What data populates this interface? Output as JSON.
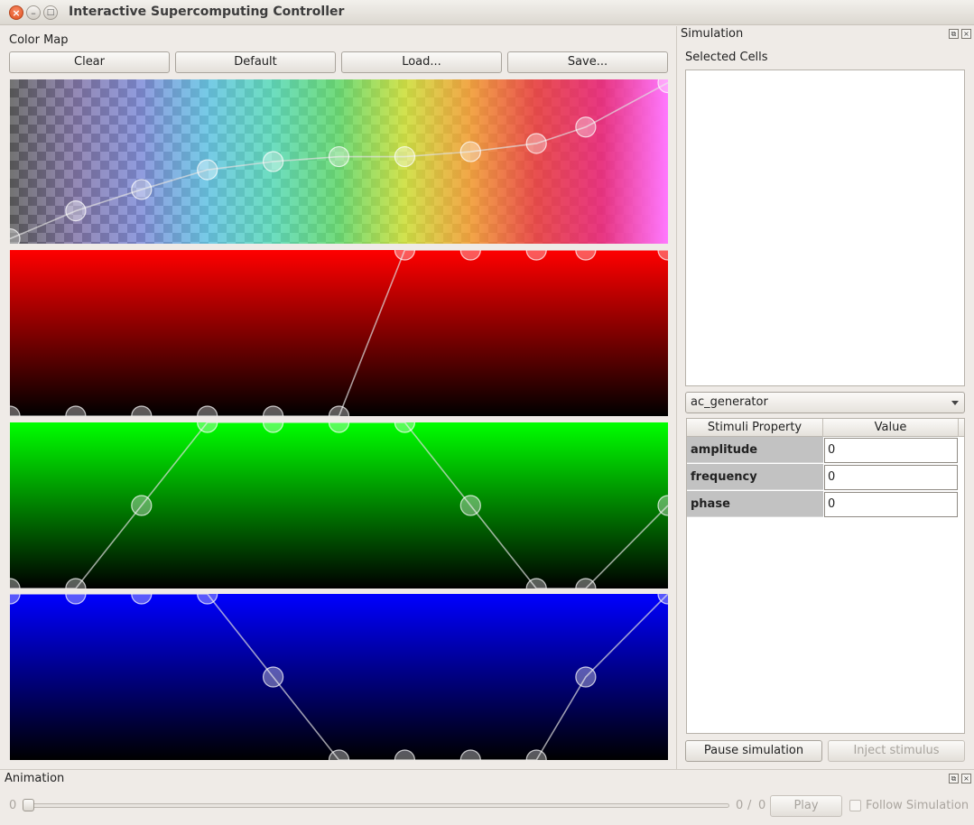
{
  "window": {
    "title": "Interactive Supercomputing Controller",
    "close_glyph": "×",
    "min_glyph": "–",
    "max_glyph": "□"
  },
  "color_map": {
    "label": "Color Map",
    "buttons": {
      "clear": "Clear",
      "default": "Default",
      "load": "Load...",
      "save": "Save..."
    }
  },
  "simulation": {
    "title": "Simulation",
    "float_glyph": "⧉",
    "close_glyph": "×",
    "selected_cells_label": "Selected Cells",
    "stimulus_type": "ac_generator",
    "table": {
      "headers": [
        "Stimuli Property",
        "Value"
      ],
      "rows": [
        {
          "property": "amplitude",
          "value": "0"
        },
        {
          "property": "frequency",
          "value": "0"
        },
        {
          "property": "phase",
          "value": "0"
        }
      ]
    },
    "pause_button": "Pause simulation",
    "inject_button": "Inject stimulus"
  },
  "animation": {
    "title": "Animation",
    "float_glyph": "⧉",
    "close_glyph": "×",
    "start_value": "0",
    "current": "0",
    "separator": "/",
    "total": "0",
    "play_button": "Play",
    "follow_label": "Follow Simulation"
  },
  "chart_data": {
    "type": "line",
    "x": [
      0,
      0.1,
      0.2,
      0.3,
      0.4,
      0.5,
      0.6,
      0.7,
      0.8,
      0.875,
      1.0
    ],
    "ylim": [
      0,
      1
    ],
    "series": [
      {
        "values": [
          0.03,
          0.2,
          0.33,
          0.45,
          0.5,
          0.53,
          0.53,
          0.56,
          0.61,
          0.71,
          0.98
        ],
        "color": "#e0e0e0"
      },
      {
        "values": [
          0.0,
          0.0,
          0.0,
          0.0,
          0.0,
          0.0,
          1.0,
          1.0,
          1.0,
          1.0,
          1.0
        ],
        "color": "#e0e0e0"
      },
      {
        "values": [
          0.0,
          0.0,
          0.5,
          1.0,
          1.0,
          1.0,
          1.0,
          0.5,
          0.0,
          0.0,
          0.5
        ],
        "color": "#e0e0e0"
      },
      {
        "values": [
          1.0,
          1.0,
          1.0,
          1.0,
          0.5,
          0.0,
          0.0,
          0.0,
          0.0,
          0.5,
          1.0
        ],
        "color": "#e0e0e0"
      }
    ]
  }
}
